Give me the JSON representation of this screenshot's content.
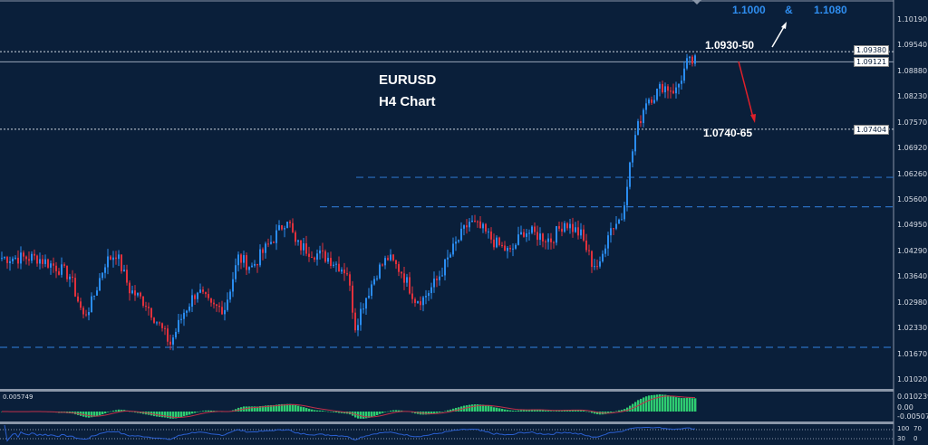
{
  "title": {
    "symbol": "EURUSD",
    "timeframe": "H4 Chart"
  },
  "annotations": {
    "resistance": "1.0930-50",
    "support": "1.0740-65",
    "target_1": "1.1000",
    "ampersand": "&",
    "target_2": "1.1080"
  },
  "price_axis": [
    "1.10190",
    "1.09540",
    "1.08880",
    "1.08230",
    "1.07570",
    "1.06920",
    "1.06260",
    "1.05600",
    "1.04950",
    "1.04290",
    "1.03640",
    "1.02980",
    "1.02330",
    "1.01670",
    "1.01020"
  ],
  "price_tags": {
    "upper_dotted": "1.09380",
    "current": "1.09121",
    "lower_dotted": "1.07404"
  },
  "macd": {
    "value_label": "0.005749",
    "axis": [
      "0.010239",
      "0.00",
      "-0.00507"
    ]
  },
  "rsi": {
    "axis": [
      "100",
      "70",
      "30",
      "0"
    ]
  },
  "colors": {
    "background": "#0a1f3a",
    "bull": "#2a8cf0",
    "bear": "#e0313c",
    "hist": "#2ecc71",
    "signal": "#c0304a",
    "rsi": "#2a5fd0",
    "annotation_blue": "#2f8ef0",
    "down_arrow": "#e0202a"
  },
  "chart_data": {
    "type": "candlestick",
    "symbol": "EURUSD",
    "timeframe": "H4",
    "ylim": [
      1.0102,
      1.1019
    ],
    "close_path": [
      [
        0,
        1.0413
      ],
      [
        13,
        1.0413
      ],
      [
        20,
        1.039
      ],
      [
        25,
        1.0367
      ],
      [
        30,
        1.0263
      ],
      [
        33,
        1.0298
      ],
      [
        38,
        1.0401
      ],
      [
        42,
        1.0425
      ],
      [
        47,
        1.0332
      ],
      [
        53,
        1.0298
      ],
      [
        58,
        1.024
      ],
      [
        62,
        1.0194
      ],
      [
        67,
        1.0275
      ],
      [
        72,
        1.0332
      ],
      [
        77,
        1.0286
      ],
      [
        82,
        1.0286
      ],
      [
        87,
        1.0413
      ],
      [
        92,
        1.039
      ],
      [
        97,
        1.0436
      ],
      [
        102,
        1.0482
      ],
      [
        105,
        1.0517
      ],
      [
        108,
        1.0448
      ],
      [
        115,
        1.0425
      ],
      [
        120,
        1.0413
      ],
      [
        127,
        1.0378
      ],
      [
        130,
        1.024
      ],
      [
        133,
        1.0298
      ],
      [
        138,
        1.0378
      ],
      [
        142,
        1.0413
      ],
      [
        147,
        1.0378
      ],
      [
        152,
        1.0309
      ],
      [
        155,
        1.0309
      ],
      [
        160,
        1.0355
      ],
      [
        167,
        1.0448
      ],
      [
        172,
        1.0505
      ],
      [
        177,
        1.0482
      ],
      [
        182,
        1.0448
      ],
      [
        187,
        1.0425
      ],
      [
        192,
        1.0482
      ],
      [
        197,
        1.0471
      ],
      [
        202,
        1.0459
      ],
      [
        207,
        1.0505
      ],
      [
        213,
        1.0471
      ],
      [
        217,
        1.0401
      ],
      [
        220,
        1.039
      ],
      [
        223,
        1.0482
      ],
      [
        228,
        1.0517
      ],
      [
        230,
        1.0609
      ],
      [
        233,
        1.0724
      ],
      [
        237,
        1.0816
      ],
      [
        240,
        1.0828
      ],
      [
        243,
        1.0851
      ],
      [
        248,
        1.0839
      ],
      [
        252,
        1.0908
      ],
      [
        255,
        1.0913
      ]
    ],
    "levels": {
      "dotted": [
        1.0938,
        1.07404
      ],
      "current": 1.09121,
      "dashed": [
        1.0618,
        1.0543,
        1.0185
      ]
    }
  }
}
